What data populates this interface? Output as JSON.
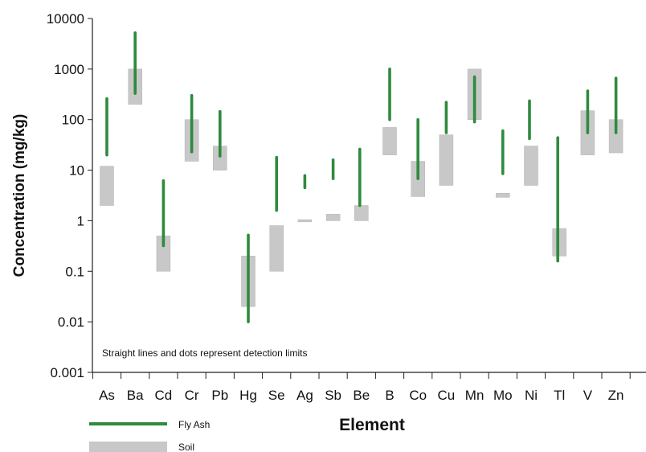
{
  "chart_data": {
    "type": "range-bar",
    "ylabel": "Concentration (mg/kg)",
    "xlabel": "Element",
    "yscale": "log",
    "ylim": [
      0.001,
      10000
    ],
    "yticks": [
      "10000",
      "1000",
      "100",
      "10",
      "1",
      "0.1",
      "0.01",
      "0.001"
    ],
    "annotation": "Straight lines and dots represent detection limits",
    "legend_position": "bottom-left",
    "categories": [
      "As",
      "Ba",
      "Cd",
      "Cr",
      "Pb",
      "Hg",
      "Se",
      "Ag",
      "Sb",
      "Be",
      "B",
      "Co",
      "Cu",
      "Mn",
      "Mo",
      "Ni",
      "Tl",
      "V",
      "Zn"
    ],
    "series": [
      {
        "name": "Fly Ash",
        "color": "#2e8b3e",
        "ranges": [
          [
            20,
            260
          ],
          [
            330,
            5200
          ],
          [
            0.32,
            6.2
          ],
          [
            23,
            300
          ],
          [
            19,
            145
          ],
          [
            0.01,
            0.52
          ],
          [
            1.6,
            18
          ],
          [
            4.5,
            7.8
          ],
          [
            6.8,
            16
          ],
          [
            2,
            26
          ],
          [
            100,
            1000
          ],
          [
            6.8,
            100
          ],
          [
            55,
            220
          ],
          [
            90,
            700
          ],
          [
            8.5,
            60
          ],
          [
            42,
            235
          ],
          [
            0.16,
            44
          ],
          [
            55,
            370
          ],
          [
            55,
            660
          ]
        ]
      },
      {
        "name": "Soil",
        "color": "#c8c8c8",
        "ranges": [
          [
            2,
            12
          ],
          [
            200,
            1000
          ],
          [
            0.1,
            0.5
          ],
          [
            15,
            100
          ],
          [
            10,
            30
          ],
          [
            0.02,
            0.2
          ],
          [
            0.1,
            0.8
          ],
          [
            0.95,
            1.05
          ],
          [
            1,
            1.35
          ],
          [
            1,
            2
          ],
          [
            20,
            70
          ],
          [
            3,
            15
          ],
          [
            5,
            50
          ],
          [
            100,
            1000
          ],
          [
            2.9,
            3.5
          ],
          [
            5,
            30
          ],
          [
            0.2,
            0.7
          ],
          [
            20,
            150
          ],
          [
            22,
            100
          ]
        ]
      }
    ]
  }
}
